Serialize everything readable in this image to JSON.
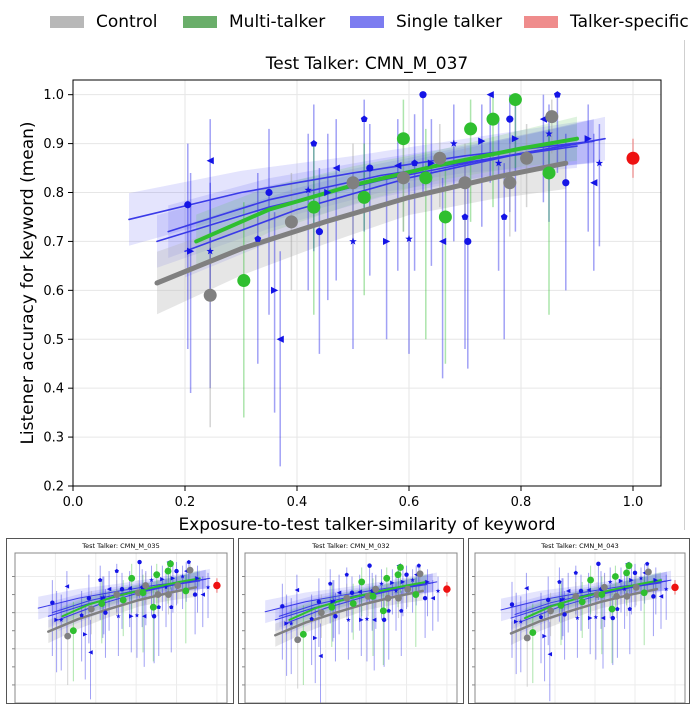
{
  "legend": [
    {
      "label": "Control",
      "color": "#b8b8b8"
    },
    {
      "label": "Multi-talker",
      "color": "#6aae6a"
    },
    {
      "label": "Single talker",
      "color": "#7c7cf0"
    },
    {
      "label": "Talker-specific",
      "color": "#ef8c8c"
    }
  ],
  "chart_data": [
    {
      "type": "scatter",
      "title": "Test Talker: CMN_M_037",
      "xlabel": "Exposure-to-test talker-similarity of keyword",
      "ylabel": "Listener accuracy for keyword (mean)",
      "xlim": [
        0.0,
        1.05
      ],
      "ylim": [
        0.2,
        1.03
      ],
      "xticks": [
        "0.0",
        "0.2",
        "0.4",
        "0.6",
        "0.8",
        "1.0"
      ],
      "yticks": [
        "0.2",
        "0.3",
        "0.4",
        "0.5",
        "0.6",
        "0.7",
        "0.8",
        "0.9",
        "1.0"
      ],
      "grid": true,
      "colors": {
        "control": "#808080",
        "multi": "#2fbf2f",
        "single": "#1414e6",
        "specific": "#ee1111"
      },
      "series": [
        {
          "name": "Control",
          "points": [
            {
              "x": 0.245,
              "y": 0.59,
              "lo": 0.32,
              "hi": 0.7
            },
            {
              "x": 0.39,
              "y": 0.74,
              "lo": 0.6,
              "hi": 0.84
            },
            {
              "x": 0.5,
              "y": 0.82,
              "lo": 0.7,
              "hi": 0.9
            },
            {
              "x": 0.59,
              "y": 0.83,
              "lo": 0.72,
              "hi": 0.9
            },
            {
              "x": 0.655,
              "y": 0.87,
              "lo": 0.77,
              "hi": 0.94
            },
            {
              "x": 0.7,
              "y": 0.82,
              "lo": 0.7,
              "hi": 0.9
            },
            {
              "x": 0.78,
              "y": 0.82,
              "lo": 0.71,
              "hi": 0.9
            },
            {
              "x": 0.81,
              "y": 0.87,
              "lo": 0.77,
              "hi": 0.94
            },
            {
              "x": 0.855,
              "y": 0.955,
              "lo": 0.88,
              "hi": 0.99
            }
          ],
          "trend": {
            "x": [
              0.15,
              0.3,
              0.45,
              0.6,
              0.75,
              0.88
            ],
            "y": [
              0.615,
              0.685,
              0.74,
              0.79,
              0.83,
              0.86
            ]
          }
        },
        {
          "name": "Multi-talker",
          "points": [
            {
              "x": 0.305,
              "y": 0.62,
              "lo": 0.34,
              "hi": 0.78
            },
            {
              "x": 0.43,
              "y": 0.77,
              "lo": 0.55,
              "hi": 0.9
            },
            {
              "x": 0.52,
              "y": 0.79,
              "lo": 0.59,
              "hi": 0.9
            },
            {
              "x": 0.59,
              "y": 0.91,
              "lo": 0.72,
              "hi": 0.99
            },
            {
              "x": 0.63,
              "y": 0.83,
              "lo": 0.5,
              "hi": 0.93
            },
            {
              "x": 0.665,
              "y": 0.75,
              "lo": 0.45,
              "hi": 0.85
            },
            {
              "x": 0.71,
              "y": 0.93,
              "lo": 0.74,
              "hi": 0.99
            },
            {
              "x": 0.75,
              "y": 0.95,
              "lo": 0.77,
              "hi": 1.0
            },
            {
              "x": 0.79,
              "y": 0.99,
              "lo": 0.85,
              "hi": 1.0
            },
            {
              "x": 0.85,
              "y": 0.84,
              "lo": 0.55,
              "hi": 0.93
            }
          ],
          "trend": {
            "x": [
              0.22,
              0.35,
              0.5,
              0.65,
              0.8,
              0.9
            ],
            "y": [
              0.7,
              0.765,
              0.815,
              0.855,
              0.89,
              0.91
            ]
          }
        },
        {
          "name": "Single talker",
          "points": [
            {
              "x": 0.205,
              "y": 0.775,
              "lo": 0.48,
              "hi": 0.9
            },
            {
              "x": 0.21,
              "y": 0.68,
              "lo": 0.39,
              "hi": 0.84
            },
            {
              "x": 0.245,
              "y": 0.865,
              "lo": 0.6,
              "hi": 0.95
            },
            {
              "x": 0.245,
              "y": 0.68,
              "lo": 0.4,
              "hi": 0.82
            },
            {
              "x": 0.33,
              "y": 0.705,
              "lo": 0.45,
              "hi": 0.84
            },
            {
              "x": 0.35,
              "y": 0.8,
              "lo": 0.55,
              "hi": 0.93
            },
            {
              "x": 0.36,
              "y": 0.6,
              "lo": 0.35,
              "hi": 0.76
            },
            {
              "x": 0.37,
              "y": 0.5,
              "lo": 0.24,
              "hi": 0.68
            },
            {
              "x": 0.42,
              "y": 0.805,
              "lo": 0.6,
              "hi": 0.92
            },
            {
              "x": 0.43,
              "y": 0.9,
              "lo": 0.68,
              "hi": 0.98
            },
            {
              "x": 0.44,
              "y": 0.72,
              "lo": 0.47,
              "hi": 0.85
            },
            {
              "x": 0.455,
              "y": 0.8,
              "lo": 0.58,
              "hi": 0.92
            },
            {
              "x": 0.47,
              "y": 0.85,
              "lo": 0.62,
              "hi": 0.95
            },
            {
              "x": 0.5,
              "y": 0.7,
              "lo": 0.48,
              "hi": 0.84
            },
            {
              "x": 0.52,
              "y": 0.95,
              "lo": 0.72,
              "hi": 0.99
            },
            {
              "x": 0.53,
              "y": 0.85,
              "lo": 0.63,
              "hi": 0.94
            },
            {
              "x": 0.56,
              "y": 0.7,
              "lo": 0.5,
              "hi": 0.83
            },
            {
              "x": 0.58,
              "y": 0.855,
              "lo": 0.64,
              "hi": 0.95
            },
            {
              "x": 0.6,
              "y": 0.705,
              "lo": 0.47,
              "hi": 0.82
            },
            {
              "x": 0.61,
              "y": 0.86,
              "lo": 0.64,
              "hi": 0.96
            },
            {
              "x": 0.625,
              "y": 1.0,
              "lo": 0.8,
              "hi": 1.0
            },
            {
              "x": 0.64,
              "y": 0.86,
              "lo": 0.65,
              "hi": 0.95
            },
            {
              "x": 0.66,
              "y": 0.7,
              "lo": 0.42,
              "hi": 0.83
            },
            {
              "x": 0.68,
              "y": 0.9,
              "lo": 0.7,
              "hi": 0.98
            },
            {
              "x": 0.7,
              "y": 0.75,
              "lo": 0.48,
              "hi": 0.86
            },
            {
              "x": 0.705,
              "y": 0.7,
              "lo": 0.44,
              "hi": 0.82
            },
            {
              "x": 0.73,
              "y": 0.905,
              "lo": 0.73,
              "hi": 0.98
            },
            {
              "x": 0.745,
              "y": 1.0,
              "lo": 0.82,
              "hi": 1.0
            },
            {
              "x": 0.76,
              "y": 0.86,
              "lo": 0.64,
              "hi": 0.95
            },
            {
              "x": 0.77,
              "y": 0.75,
              "lo": 0.5,
              "hi": 0.86
            },
            {
              "x": 0.78,
              "y": 0.95,
              "lo": 0.76,
              "hi": 1.0
            },
            {
              "x": 0.79,
              "y": 0.91,
              "lo": 0.72,
              "hi": 0.98
            },
            {
              "x": 0.84,
              "y": 0.95,
              "lo": 0.78,
              "hi": 1.0
            },
            {
              "x": 0.85,
              "y": 0.92,
              "lo": 0.74,
              "hi": 0.98
            },
            {
              "x": 0.865,
              "y": 1.0,
              "lo": 0.84,
              "hi": 1.0
            },
            {
              "x": 0.88,
              "y": 0.82,
              "lo": 0.6,
              "hi": 0.92
            },
            {
              "x": 0.92,
              "y": 0.91,
              "lo": 0.72,
              "hi": 0.98
            },
            {
              "x": 0.93,
              "y": 0.82,
              "lo": 0.64,
              "hi": 0.92
            },
            {
              "x": 0.94,
              "y": 0.86,
              "lo": 0.69,
              "hi": 0.94
            }
          ],
          "trends": [
            {
              "x": [
                0.1,
                0.3,
                0.5,
                0.7,
                0.93
              ],
              "y": [
                0.745,
                0.8,
                0.84,
                0.875,
                0.905
              ]
            },
            {
              "x": [
                0.15,
                0.35,
                0.55,
                0.75,
                0.95
              ],
              "y": [
                0.7,
                0.77,
                0.825,
                0.87,
                0.91
              ]
            },
            {
              "x": [
                0.2,
                0.4,
                0.6,
                0.8,
                0.93
              ],
              "y": [
                0.68,
                0.765,
                0.83,
                0.88,
                0.905
              ]
            },
            {
              "x": [
                0.17,
                0.35,
                0.55,
                0.75,
                0.9
              ],
              "y": [
                0.72,
                0.785,
                0.835,
                0.87,
                0.895
              ]
            }
          ]
        },
        {
          "name": "Talker-specific",
          "points": [
            {
              "x": 1.0,
              "y": 0.87,
              "lo": 0.83,
              "hi": 0.91
            }
          ]
        }
      ]
    },
    {
      "type": "scatter",
      "title": "Test Talker: CMN_M_035",
      "xlim": [
        0.0,
        1.05
      ],
      "ylim": [
        0.2,
        1.03
      ]
    },
    {
      "type": "scatter",
      "title": "Test Talker: CMN_M_032",
      "xlim": [
        0.0,
        1.05
      ],
      "ylim": [
        0.2,
        1.03
      ]
    },
    {
      "type": "scatter",
      "title": "Test Talker: CMN_M_043",
      "xlim": [
        0.0,
        1.05
      ],
      "ylim": [
        0.2,
        1.03
      ]
    }
  ]
}
